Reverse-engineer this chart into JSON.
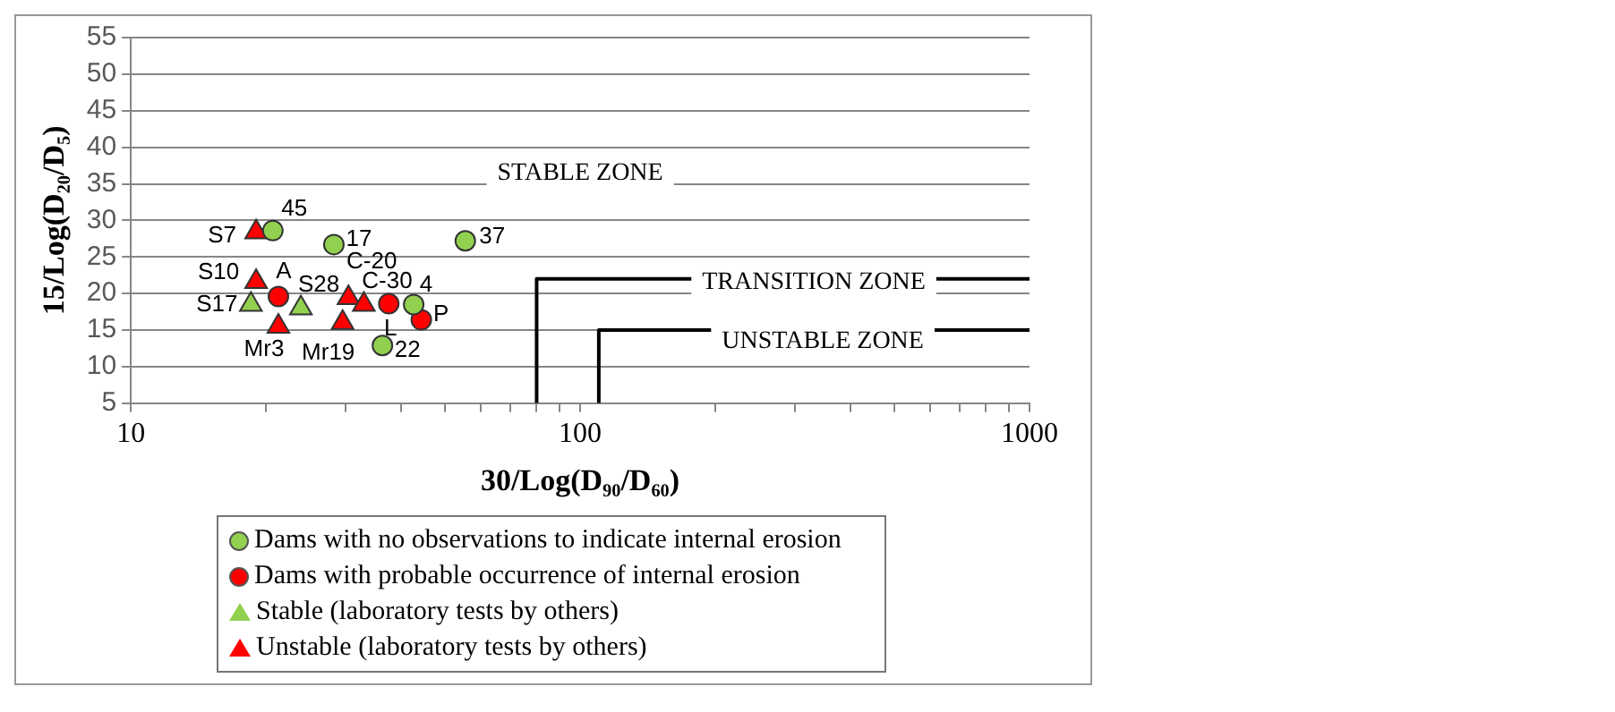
{
  "chart_data": {
    "type": "scatter",
    "xlabel": "30/Log(D₉₀/D₆₀)",
    "ylabel": "15/Log(D₂₀/D₅)",
    "log": "x",
    "xlim": [
      10,
      1000
    ],
    "ylim": [
      5,
      55
    ],
    "xticks": [
      10,
      {
        "value": 20,
        "label": null
      },
      {
        "value": 30,
        "label": null
      },
      {
        "value": 40,
        "label": null
      },
      {
        "value": 50,
        "label": null
      },
      {
        "value": 60,
        "label": null
      },
      {
        "value": 70,
        "label": null
      },
      {
        "value": 80,
        "label": null
      },
      {
        "value": 90,
        "label": null
      },
      100,
      {
        "value": 200,
        "label": null
      },
      {
        "value": 300,
        "label": null
      },
      {
        "value": 400,
        "label": null
      },
      {
        "value": 500,
        "label": null
      },
      {
        "value": 600,
        "label": null
      },
      {
        "value": 700,
        "label": null
      },
      {
        "value": 800,
        "label": null
      },
      {
        "value": 900,
        "label": null
      },
      1000
    ],
    "yticks": [
      5,
      10,
      15,
      20,
      25,
      30,
      35,
      40,
      45,
      50,
      55
    ],
    "grid": "y",
    "legend": "bottom",
    "series": [
      {
        "name": "Dams with no observations to indicate internal erosion",
        "color": "#92d050",
        "marker": "circle",
        "x": [
          20.7,
          28.3,
          55.5,
          42.6,
          36.3
        ],
        "values": [
          28.6,
          26.7,
          27.2,
          18.5,
          12.9
        ]
      },
      {
        "name": "Dams with probable occurrence of internal erosion",
        "color": "#ff0000",
        "marker": "circle",
        "x": [
          21.3,
          37.5,
          44.3
        ],
        "values": [
          19.6,
          18.6,
          16.4
        ]
      },
      {
        "name": "Stable (laboratory tests by others)",
        "color": "#92d050",
        "marker": "triangle",
        "x": [
          18.5,
          23.9
        ],
        "values": [
          18.5,
          18.0
        ]
      },
      {
        "name": "Unstable (laboratory tests by others)",
        "color": "#ff0000",
        "marker": "triangle",
        "x": [
          19.0,
          19.0,
          21.3,
          30.5,
          33.0,
          29.6
        ],
        "values": [
          28.4,
          21.6,
          15.5,
          19.4,
          18.5,
          16.0
        ]
      },
      {
        "type": "line",
        "color": "#000000",
        "marker": "none",
        "x": [
          80,
          80,
          1000
        ],
        "values": [
          5,
          22,
          22
        ]
      },
      {
        "type": "line",
        "color": "#000000",
        "marker": "none",
        "x": [
          110,
          110,
          1000
        ],
        "values": [
          5,
          15,
          15
        ]
      }
    ],
    "annotations": [
      "STABLE ZONE",
      "TRANSITION ZONE",
      "UNSTABLE ZONE",
      {
        "text": "45",
        "x": 20.7,
        "y": 28.6
      },
      {
        "text": "S7",
        "x": 19.0,
        "y": 28.4
      },
      {
        "text": "17",
        "x": 28.3,
        "y": 26.7
      },
      {
        "text": "37",
        "x": 55.5,
        "y": 27.2
      },
      {
        "text": "S10",
        "x": 19.0,
        "y": 21.6
      },
      {
        "text": "A",
        "x": 21.3,
        "y": 19.6
      },
      {
        "text": "S17",
        "x": 18.5,
        "y": 18.5
      },
      {
        "text": "S28",
        "x": 23.9,
        "y": 18.0
      },
      {
        "text": "Mr3",
        "x": 21.3,
        "y": 15.5
      },
      {
        "text": "C-20",
        "x": 30.5,
        "y": 19.4
      },
      {
        "text": "C-30",
        "x": 33.0,
        "y": 18.5
      },
      {
        "text": "4",
        "x": 42.6,
        "y": 18.5
      },
      {
        "text": "P",
        "x": 44.3,
        "y": 16.4
      },
      {
        "text": "L",
        "x": 37.5,
        "y": 18.6
      },
      {
        "text": "Mr19",
        "x": 29.6,
        "y": 16.0
      },
      {
        "text": "22",
        "x": 36.3,
        "y": 12.9
      }
    ]
  }
}
